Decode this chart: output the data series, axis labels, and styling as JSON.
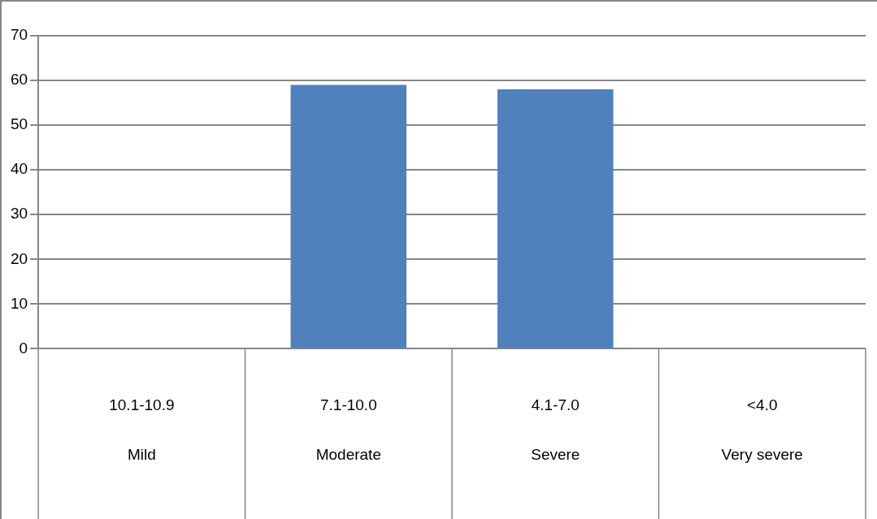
{
  "chart_data": {
    "type": "bar",
    "categories": [
      "10.1-10.9\nMild",
      "7.1-10.0\nModerate",
      "4.1-7.0\nSevere",
      "<4.0\nVery severe"
    ],
    "values": [
      0,
      59,
      58,
      0
    ],
    "color": "#4f81bd",
    "ylim": [
      0,
      70
    ],
    "yticks": [
      0,
      10,
      20,
      30,
      40,
      50,
      60,
      70
    ],
    "grid": "y",
    "legend": false
  }
}
